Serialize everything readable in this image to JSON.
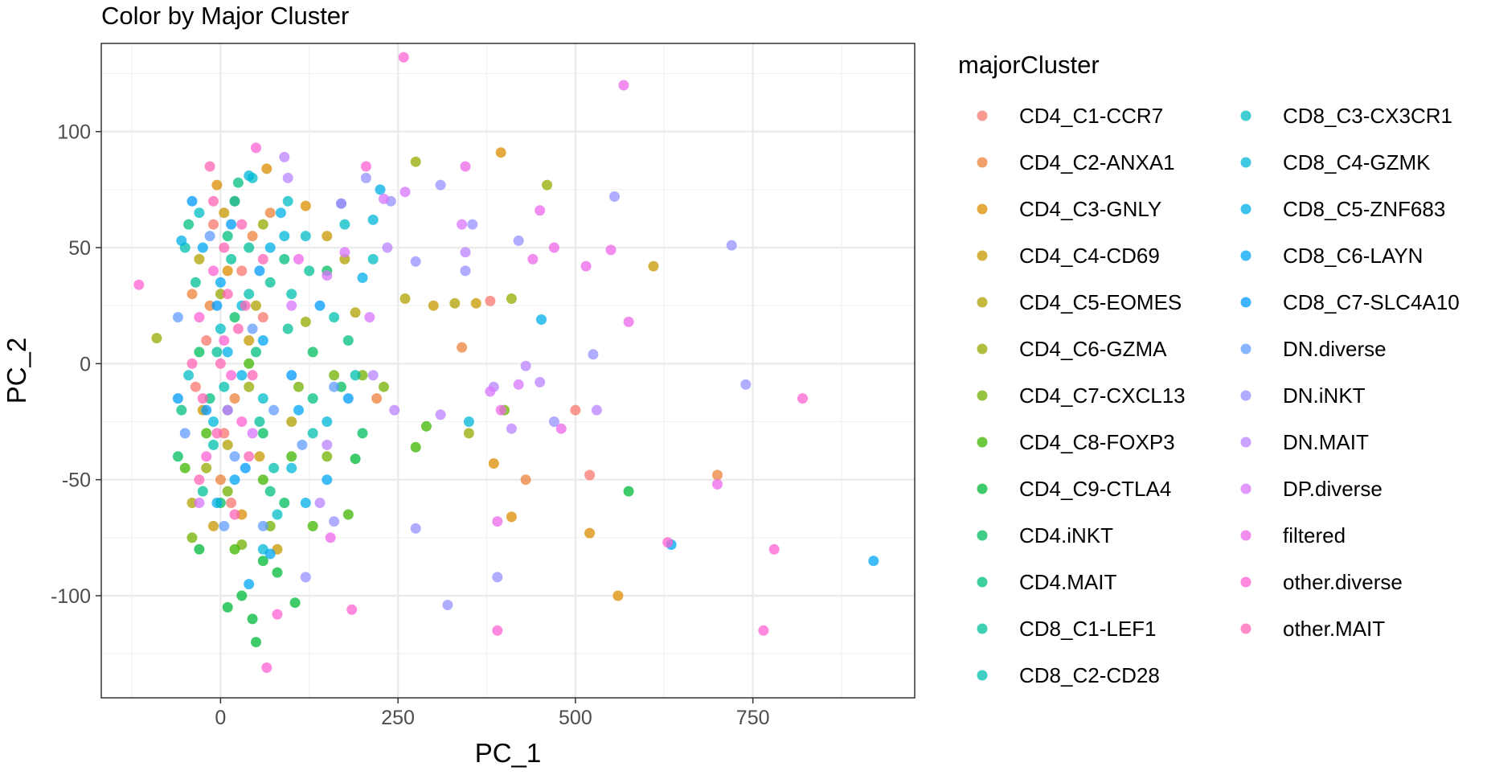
{
  "chart_data": {
    "type": "scatter",
    "title": "Color by Major Cluster",
    "xlabel": "PC_1",
    "ylabel": "PC_2",
    "xlim": [
      -168,
      978
    ],
    "ylim": [
      -144,
      138
    ],
    "x_ticks": [
      0,
      250,
      500,
      750
    ],
    "y_ticks": [
      -100,
      -50,
      0,
      50,
      100
    ],
    "grid": true,
    "legend": {
      "title": "majorCluster",
      "position": "right"
    },
    "series": [
      {
        "name": "CD4_C1-CCR7",
        "color": "#F8766D",
        "points": [
          [
            -20,
            10
          ],
          [
            5,
            -30
          ],
          [
            30,
            40
          ],
          [
            -10,
            60
          ],
          [
            15,
            -60
          ],
          [
            60,
            20
          ],
          [
            -35,
            -10
          ],
          [
            500,
            -20
          ],
          [
            380,
            27
          ],
          [
            520,
            -48
          ]
        ]
      },
      {
        "name": "CD4_C2-ANXA1",
        "color": "#EC8239",
        "points": [
          [
            -15,
            25
          ],
          [
            20,
            -15
          ],
          [
            45,
            55
          ],
          [
            0,
            -50
          ],
          [
            -40,
            30
          ],
          [
            700,
            -48
          ],
          [
            340,
            7
          ],
          [
            430,
            -50
          ],
          [
            220,
            -15
          ],
          [
            70,
            65
          ]
        ]
      },
      {
        "name": "CD4_C3-GNLY",
        "color": "#DB8E00",
        "points": [
          [
            -5,
            77
          ],
          [
            30,
            -65
          ],
          [
            65,
            84
          ],
          [
            10,
            40
          ],
          [
            395,
            91
          ],
          [
            385,
            -43
          ],
          [
            410,
            -66
          ],
          [
            560,
            -100
          ],
          [
            520,
            -73
          ],
          [
            120,
            68
          ]
        ]
      },
      {
        "name": "CD4_C4-CD69",
        "color": "#C79800",
        "points": [
          [
            -25,
            -20
          ],
          [
            40,
            10
          ],
          [
            55,
            -40
          ],
          [
            5,
            65
          ],
          [
            610,
            42
          ],
          [
            360,
            26
          ],
          [
            300,
            25
          ],
          [
            150,
            55
          ],
          [
            80,
            -80
          ],
          [
            -10,
            -70
          ]
        ]
      },
      {
        "name": "CD4_C5-EOMES",
        "color": "#AFA100",
        "points": [
          [
            10,
            -35
          ],
          [
            -30,
            45
          ],
          [
            50,
            25
          ],
          [
            20,
            70
          ],
          [
            260,
            28
          ],
          [
            330,
            26
          ],
          [
            175,
            45
          ],
          [
            100,
            -25
          ],
          [
            190,
            22
          ],
          [
            -40,
            -60
          ]
        ]
      },
      {
        "name": "CD4_C6-GZMA",
        "color": "#96A900",
        "points": [
          [
            -90,
            11
          ],
          [
            275,
            87
          ],
          [
            460,
            77
          ],
          [
            350,
            -30
          ],
          [
            410,
            28
          ],
          [
            0,
            30
          ],
          [
            40,
            -10
          ],
          [
            -20,
            -45
          ],
          [
            60,
            60
          ],
          [
            120,
            18
          ]
        ]
      },
      {
        "name": "CD4_C7-CXCL13",
        "color": "#72B000",
        "points": [
          [
            200,
            -5
          ],
          [
            230,
            -10
          ],
          [
            160,
            -5
          ],
          [
            110,
            -10
          ],
          [
            400,
            -20
          ],
          [
            30,
            -78
          ],
          [
            -40,
            -75
          ],
          [
            70,
            -70
          ],
          [
            10,
            -55
          ],
          [
            150,
            -40
          ]
        ]
      },
      {
        "name": "CD4_C8-FOXP3",
        "color": "#3FB500",
        "points": [
          [
            290,
            -27
          ],
          [
            275,
            -36
          ],
          [
            60,
            -50
          ],
          [
            -50,
            -45
          ],
          [
            20,
            -80
          ],
          [
            130,
            -70
          ],
          [
            180,
            -65
          ],
          [
            -20,
            -30
          ],
          [
            40,
            0
          ],
          [
            100,
            -40
          ]
        ]
      },
      {
        "name": "CD4_C9-CTLA4",
        "color": "#00BA38",
        "points": [
          [
            45,
            -110
          ],
          [
            30,
            -100
          ],
          [
            50,
            -120
          ],
          [
            80,
            -90
          ],
          [
            105,
            -103
          ],
          [
            10,
            -105
          ],
          [
            60,
            -85
          ],
          [
            -30,
            -80
          ],
          [
            575,
            -55
          ],
          [
            190,
            -41
          ]
        ]
      },
      {
        "name": "CD4.iNKT",
        "color": "#00BD5F",
        "points": [
          [
            -60,
            -40
          ],
          [
            0,
            -60
          ],
          [
            90,
            -60
          ],
          [
            170,
            -10
          ],
          [
            130,
            5
          ],
          [
            20,
            20
          ],
          [
            -30,
            5
          ],
          [
            60,
            -30
          ],
          [
            150,
            40
          ],
          [
            200,
            -30
          ]
        ]
      },
      {
        "name": "CD4.MAIT",
        "color": "#00BF7D",
        "points": [
          [
            -45,
            60
          ],
          [
            25,
            78
          ],
          [
            90,
            45
          ],
          [
            130,
            -15
          ],
          [
            -15,
            -15
          ],
          [
            50,
            5
          ],
          [
            180,
            10
          ],
          [
            70,
            -55
          ],
          [
            10,
            55
          ],
          [
            -55,
            -20
          ]
        ]
      },
      {
        "name": "CD8_C1-LEF1",
        "color": "#00C097",
        "points": [
          [
            -35,
            35
          ],
          [
            10,
            -20
          ],
          [
            40,
            50
          ],
          [
            70,
            35
          ],
          [
            -5,
            5
          ],
          [
            95,
            15
          ],
          [
            125,
            40
          ],
          [
            55,
            -25
          ],
          [
            -25,
            -55
          ],
          [
            15,
            45
          ]
        ]
      },
      {
        "name": "CD8_C2-CD28",
        "color": "#00C0AF",
        "points": [
          [
            -50,
            50
          ],
          [
            20,
            70
          ],
          [
            100,
            30
          ],
          [
            160,
            20
          ],
          [
            75,
            -45
          ],
          [
            -10,
            -35
          ],
          [
            40,
            30
          ],
          [
            190,
            -5
          ],
          [
            130,
            -30
          ],
          [
            5,
            -10
          ]
        ]
      },
      {
        "name": "CD8_C3-CX3CR1",
        "color": "#00BCC5",
        "points": [
          [
            -30,
            65
          ],
          [
            45,
            80
          ],
          [
            95,
            70
          ],
          [
            175,
            60
          ],
          [
            215,
            45
          ],
          [
            0,
            15
          ],
          [
            60,
            -15
          ],
          [
            120,
            55
          ],
          [
            80,
            -65
          ],
          [
            -45,
            -5
          ]
        ]
      },
      {
        "name": "CD8_C4-GZMK",
        "color": "#00B7D8",
        "points": [
          [
            40,
            81
          ],
          [
            170,
            69
          ],
          [
            215,
            62
          ],
          [
            60,
            -80
          ],
          [
            -10,
            -25
          ],
          [
            30,
            25
          ],
          [
            90,
            55
          ],
          [
            150,
            -25
          ],
          [
            350,
            -25
          ],
          [
            100,
            -45
          ]
        ]
      },
      {
        "name": "CD8_C5-ZNF683",
        "color": "#00AFE8",
        "points": [
          [
            452,
            19
          ],
          [
            225,
            75
          ],
          [
            200,
            37
          ],
          [
            -55,
            53
          ],
          [
            -5,
            -60
          ],
          [
            85,
            65
          ],
          [
            30,
            -5
          ],
          [
            120,
            -60
          ],
          [
            70,
            50
          ],
          [
            10,
            5
          ]
        ]
      },
      {
        "name": "CD8_C6-LAYN",
        "color": "#00A5F4",
        "points": [
          [
            920,
            -85
          ],
          [
            635,
            -78
          ],
          [
            70,
            -82
          ],
          [
            40,
            -95
          ],
          [
            150,
            -50
          ],
          [
            -25,
            50
          ],
          [
            0,
            35
          ],
          [
            60,
            10
          ],
          [
            110,
            -20
          ],
          [
            20,
            -50
          ]
        ]
      },
      {
        "name": "CD8_C7-SLC4A10",
        "color": "#0099FC",
        "points": [
          [
            -40,
            70
          ],
          [
            -60,
            -15
          ],
          [
            15,
            60
          ],
          [
            55,
            40
          ],
          [
            100,
            -5
          ],
          [
            140,
            25
          ],
          [
            -20,
            -20
          ],
          [
            35,
            -45
          ],
          [
            180,
            -15
          ],
          [
            -5,
            25
          ]
        ]
      },
      {
        "name": "DN.diverse",
        "color": "#619CFF",
        "points": [
          [
            -60,
            20
          ],
          [
            -50,
            -30
          ],
          [
            20,
            -40
          ],
          [
            75,
            -20
          ],
          [
            115,
            -35
          ],
          [
            160,
            -10
          ],
          [
            45,
            15
          ],
          [
            -15,
            55
          ],
          [
            5,
            -70
          ],
          [
            60,
            -70
          ]
        ]
      },
      {
        "name": "DN.iNKT",
        "color": "#9590FF",
        "points": [
          [
            720,
            51
          ],
          [
            740,
            -9
          ],
          [
            555,
            72
          ],
          [
            525,
            4
          ],
          [
            420,
            53
          ],
          [
            355,
            60
          ],
          [
            310,
            77
          ],
          [
            470,
            -25
          ],
          [
            390,
            -92
          ],
          [
            320,
            -104
          ],
          [
            275,
            -71
          ],
          [
            160,
            -68
          ],
          [
            120,
            -92
          ],
          [
            205,
            80
          ],
          [
            240,
            70
          ],
          [
            345,
            40
          ],
          [
            275,
            44
          ]
        ]
      },
      {
        "name": "DN.MAIT",
        "color": "#B983FF",
        "points": [
          [
            90,
            89
          ],
          [
            170,
            69
          ],
          [
            245,
            -20
          ],
          [
            310,
            -22
          ],
          [
            385,
            -10
          ],
          [
            410,
            -28
          ],
          [
            430,
            -1
          ],
          [
            450,
            -8
          ],
          [
            530,
            -20
          ],
          [
            215,
            -5
          ],
          [
            140,
            -60
          ],
          [
            345,
            48
          ],
          [
            235,
            50
          ],
          [
            95,
            80
          ],
          [
            150,
            -35
          ]
        ]
      },
      {
        "name": "DP.diverse",
        "color": "#D874FD",
        "points": [
          [
            260,
            74
          ],
          [
            230,
            71
          ],
          [
            175,
            48
          ],
          [
            340,
            60
          ],
          [
            380,
            -12
          ],
          [
            -30,
            -60
          ],
          [
            45,
            -30
          ],
          [
            100,
            25
          ],
          [
            210,
            20
          ],
          [
            420,
            -9
          ],
          [
            150,
            38
          ],
          [
            10,
            -20
          ]
        ]
      },
      {
        "name": "filtered",
        "color": "#EE67EB",
        "points": [
          [
            568,
            120
          ],
          [
            450,
            66
          ],
          [
            470,
            50
          ],
          [
            575,
            18
          ],
          [
            480,
            -28
          ],
          [
            550,
            49
          ],
          [
            700,
            -52
          ],
          [
            390,
            -68
          ],
          [
            515,
            42
          ],
          [
            345,
            85
          ],
          [
            395,
            -20
          ],
          [
            155,
            -75
          ],
          [
            110,
            45
          ],
          [
            440,
            45
          ]
        ]
      },
      {
        "name": "other.diverse",
        "color": "#FD61D3",
        "points": [
          [
            258,
            132
          ],
          [
            -115,
            34
          ],
          [
            50,
            93
          ],
          [
            205,
            85
          ],
          [
            185,
            -106
          ],
          [
            390,
            -115
          ],
          [
            765,
            -115
          ],
          [
            820,
            -15
          ],
          [
            780,
            -80
          ],
          [
            630,
            -77
          ],
          [
            65,
            -131
          ],
          [
            80,
            -108
          ],
          [
            30,
            -25
          ],
          [
            -10,
            40
          ],
          [
            5,
            10
          ],
          [
            -20,
            -40
          ],
          [
            15,
            -5
          ],
          [
            -30,
            20
          ]
        ]
      },
      {
        "name": "other.MAIT",
        "color": "#FF63B6",
        "points": [
          [
            -15,
            85
          ],
          [
            30,
            60
          ],
          [
            0,
            0
          ],
          [
            -25,
            -15
          ],
          [
            40,
            -40
          ],
          [
            10,
            30
          ],
          [
            -5,
            -30
          ],
          [
            25,
            15
          ],
          [
            -40,
            0
          ],
          [
            60,
            45
          ],
          [
            20,
            -65
          ],
          [
            -10,
            70
          ],
          [
            45,
            -5
          ],
          [
            5,
            50
          ],
          [
            -30,
            -50
          ],
          [
            35,
            25
          ]
        ]
      }
    ]
  }
}
